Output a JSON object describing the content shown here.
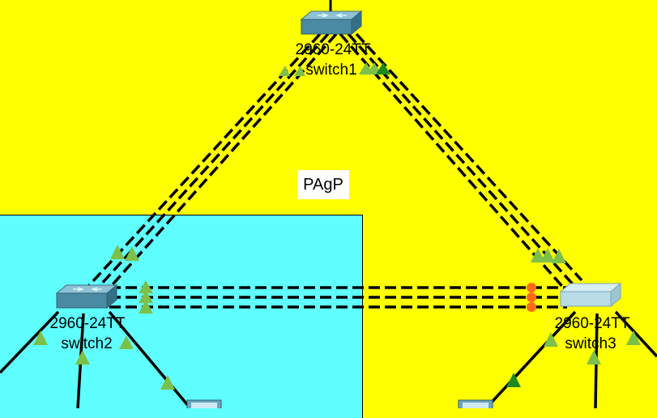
{
  "topology": {
    "note": "PAgP",
    "colors": {
      "background_area": "#ffff00",
      "lan_area": "#5fffff",
      "link_up": "#7cc04a",
      "link_up_dark": "#1e8a1e",
      "link_blocked": "#ff6a13",
      "cable": "#000000"
    },
    "devices": [
      {
        "id": "switch1",
        "model": "2960-24TT",
        "name": "switch1",
        "icon": "switch-icon"
      },
      {
        "id": "switch2",
        "model": "2960-24TT",
        "name": "switch2",
        "icon": "switch-icon"
      },
      {
        "id": "switch3",
        "model": "2960-24TT",
        "name": "switch3",
        "icon": "switch-icon"
      }
    ],
    "etherchannels": [
      {
        "from": "switch1",
        "to": "switch2",
        "links": 3,
        "status": "up"
      },
      {
        "from": "switch1",
        "to": "switch3",
        "links": 3,
        "status": "up"
      },
      {
        "from": "switch2",
        "to": "switch3",
        "links": 3,
        "status": "blocked at switch3"
      }
    ]
  }
}
